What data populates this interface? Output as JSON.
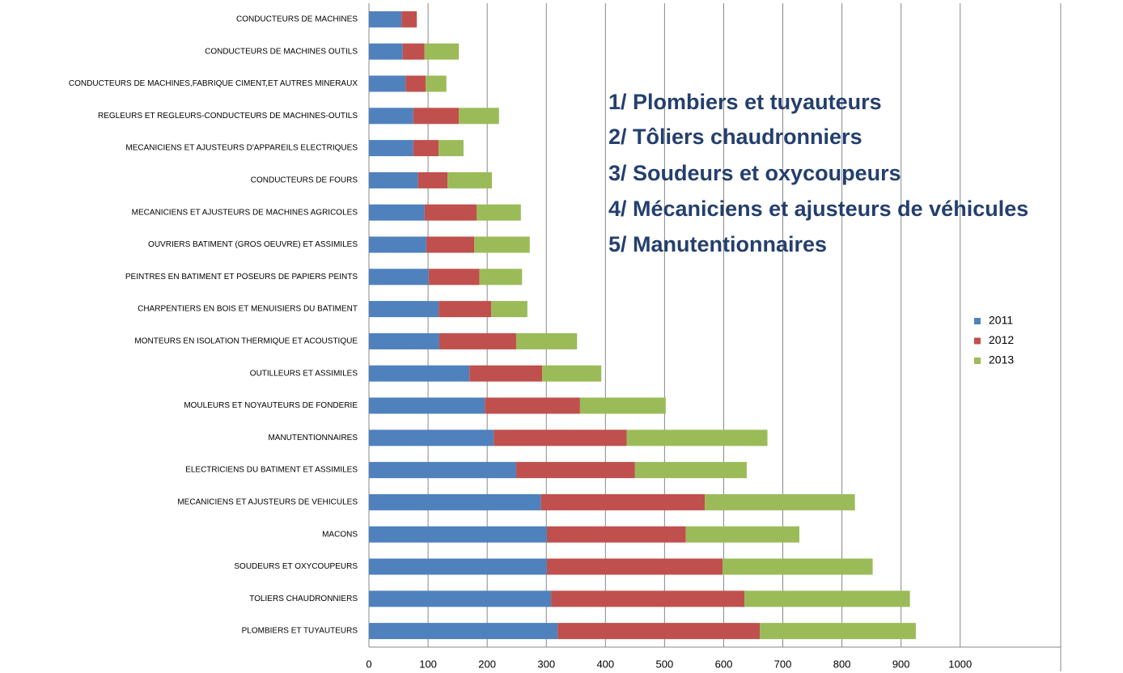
{
  "chart_data": {
    "type": "stacked-barh",
    "categories": [
      "CONDUCTEURS DE MACHINES",
      "CONDUCTEURS DE MACHINES OUTILS",
      "CONDUCTEURS DE MACHINES,FABRIQUE CIMENT,ET AUTRES MINERAUX",
      "REGLEURS ET REGLEURS-CONDUCTEURS DE MACHINES-OUTILS",
      "MECANICIENS ET AJUSTEURS D'APPAREILS ELECTRIQUES",
      "CONDUCTEURS DE FOURS",
      "MECANICIENS ET AJUSTEURS DE MACHINES AGRICOLES",
      "OUVRIERS BATIMENT (GROS OEUVRE) ET ASSIMILES",
      "PEINTRES EN BATIMENT ET POSEURS DE PAPIERS PEINTS",
      "CHARPENTIERS EN BOIS ET MENUISIERS DU BATIMENT",
      "MONTEURS EN ISOLATION THERMIQUE ET ACOUSTIQUE",
      "OUTILLEURS ET ASSIMILES",
      "MOULEURS ET NOYAUTEURS DE FONDERIE",
      "MANUTENTIONNAIRES",
      "ELECTRICIENS DU BATIMENT ET ASSIMILES",
      "MECANICIENS ET AJUSTEURS DE VEHICULES",
      "MACONS",
      "SOUDEURS ET OXYCOUPEURS",
      "TOLIERS CHAUDRONNIERS",
      "PLOMBIERS ET TUYAUTEURS"
    ],
    "series": [
      {
        "name": "2011",
        "color": "#4f81bd",
        "values": [
          55,
          57,
          62,
          75,
          75,
          83,
          94,
          97,
          101,
          118,
          119,
          170,
          196,
          211,
          249,
          291,
          301,
          301,
          308,
          319
        ]
      },
      {
        "name": "2012",
        "color": "#c0504d",
        "values": [
          26,
          37,
          34,
          77,
          43,
          50,
          88,
          81,
          86,
          89,
          130,
          123,
          161,
          225,
          201,
          277,
          235,
          297,
          327,
          342
        ]
      },
      {
        "name": "2013",
        "color": "#9bbb59",
        "values": [
          null,
          58,
          35,
          68,
          42,
          75,
          75,
          94,
          72,
          61,
          103,
          100,
          145,
          238,
          189,
          254,
          192,
          254,
          280,
          264
        ]
      }
    ],
    "xlim": [
      0,
      1170
    ],
    "xticks": [
      0,
      100,
      200,
      300,
      400,
      500,
      600,
      700,
      800,
      900,
      1000
    ],
    "grid": true,
    "legend": "right",
    "annotations": [
      "1/ Plombiers et tuyauteurs",
      "2/ Tôliers chaudronniers",
      "3/ Soudeurs et oxycoupeurs",
      "4/ Mécaniciens et ajusteurs de véhicules",
      "5/ Manutentionnaires"
    ]
  }
}
